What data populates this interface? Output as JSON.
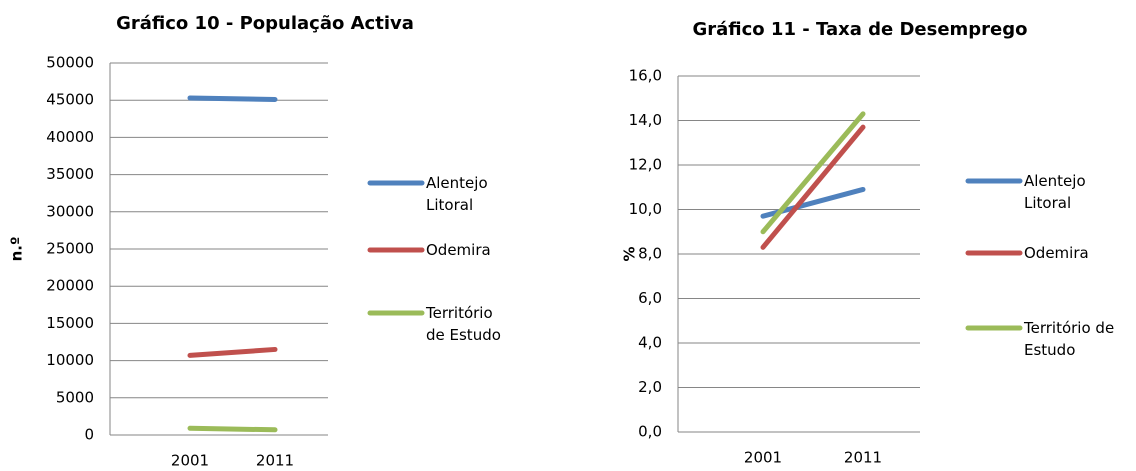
{
  "chart_data": [
    {
      "type": "line",
      "title": "Gráfico 10 - População Activa",
      "y_label": "n.º",
      "categories": [
        "2001",
        "2011"
      ],
      "series": [
        {
          "name": "Alentejo Litoral",
          "color": "#4f81bd",
          "values": [
            45300,
            45100
          ]
        },
        {
          "name": "Odemira",
          "color": "#c0504d",
          "values": [
            10700,
            11500
          ]
        },
        {
          "name": "Território de Estudo",
          "color": "#9bbb59",
          "values": [
            900,
            700
          ]
        }
      ],
      "ylim": [
        0,
        50000
      ],
      "yticks": [
        0,
        5000,
        10000,
        15000,
        20000,
        25000,
        30000,
        35000,
        40000,
        45000,
        50000
      ],
      "grid": true,
      "legend": "right"
    },
    {
      "type": "line",
      "title": "Gráfico 11 - Taxa de Desemprego",
      "y_label": "%",
      "categories": [
        "2001",
        "2011"
      ],
      "series": [
        {
          "name": "Alentejo Litoral",
          "color": "#4f81bd",
          "values": [
            9.7,
            10.9
          ]
        },
        {
          "name": "Odemira",
          "color": "#c0504d",
          "values": [
            8.3,
            13.7
          ]
        },
        {
          "name": "Território de Estudo",
          "color": "#9bbb59",
          "values": [
            9.0,
            14.3
          ]
        }
      ],
      "ylim": [
        0,
        16
      ],
      "yticks": [
        {
          "value": 0,
          "label": "0,0"
        },
        {
          "value": 2,
          "label": "2,0"
        },
        {
          "value": 4,
          "label": "4,0"
        },
        {
          "value": 6,
          "label": "6,0"
        },
        {
          "value": 8,
          "label": "8,0"
        },
        {
          "value": 10,
          "label": "10,0"
        },
        {
          "value": 12,
          "label": "12,0"
        },
        {
          "value": 14,
          "label": "14,0"
        },
        {
          "value": 16,
          "label": "16,0"
        }
      ],
      "grid": true,
      "legend": "right"
    }
  ]
}
